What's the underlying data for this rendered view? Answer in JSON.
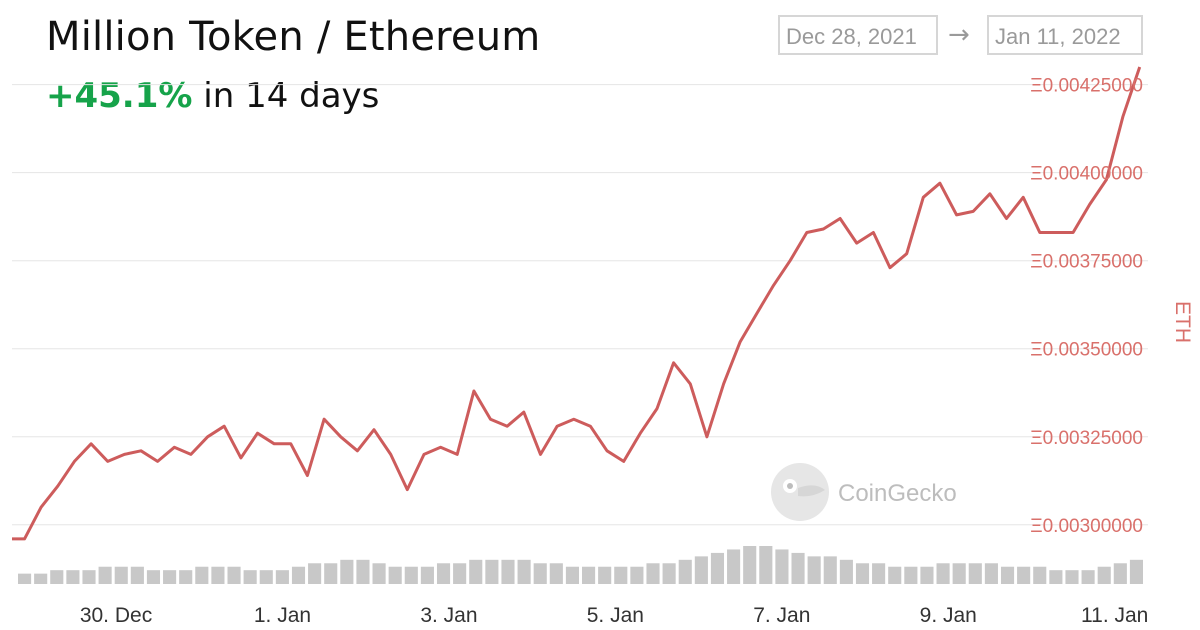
{
  "header": {
    "title": "Million Token / Ethereum",
    "change": "+45.1%",
    "change_suffix": " in 14 days",
    "change_color": "#16a34a"
  },
  "range": {
    "start": "Dec 28, 2021",
    "arrow": "→",
    "end": "Jan 11, 2022"
  },
  "watermark": {
    "text": "CoinGecko",
    "icon": "gecko-logo-icon"
  },
  "colors": {
    "line": "#cd5c5c",
    "grid": "#e5e5e5",
    "volume": "#c8c8c8",
    "axis_text": "#d9706b"
  },
  "chart_data": {
    "type": "line",
    "title": "Million Token / Ethereum",
    "xlabel": "",
    "ylabel": "ETH",
    "x_range": [
      "2021-12-28",
      "2022-01-11"
    ],
    "ylim": [
      0.0029,
      0.00432
    ],
    "y_ticks": [
      0.003,
      0.00325,
      0.0035,
      0.00375,
      0.004,
      0.00425
    ],
    "y_tick_labels": [
      "Ξ0.00300000",
      "Ξ0.00325000",
      "Ξ0.00350000",
      "Ξ0.00375000",
      "Ξ0.00400000",
      "Ξ0.00425000"
    ],
    "x_tick_labels": [
      "30. Dec",
      "1. Jan",
      "3. Jan",
      "5. Jan",
      "7. Jan",
      "9. Jan",
      "11. Jan"
    ],
    "x_tick_days": [
      2,
      4,
      6,
      8,
      10,
      12,
      14
    ],
    "grid": true,
    "legend": "none",
    "series": [
      {
        "x": [
          0.9,
          1.1,
          1.3,
          1.5,
          1.7,
          1.9,
          2.1,
          2.3,
          2.5,
          2.7,
          2.9,
          3.1,
          3.3,
          3.5,
          3.7,
          3.9,
          4.1,
          4.3,
          4.5,
          4.7,
          4.9,
          5.1,
          5.3,
          5.5,
          5.7,
          5.9,
          6.1,
          6.3,
          6.5,
          6.7,
          6.9,
          7.1,
          7.3,
          7.5,
          7.7,
          7.9,
          8.1,
          8.3,
          8.5,
          8.7,
          8.9,
          9.1,
          9.3,
          9.5,
          9.7,
          9.9,
          10.1,
          10.3,
          10.5,
          10.7,
          10.9,
          11.1,
          11.3,
          11.5,
          11.7,
          11.9,
          12.1,
          12.3,
          12.5,
          12.7,
          12.9,
          13.1,
          13.3,
          13.5,
          13.7,
          13.9,
          14.1,
          14.3
        ],
        "values": [
          0.00296,
          0.00305,
          0.00311,
          0.00318,
          0.00323,
          0.00318,
          0.0032,
          0.00321,
          0.00318,
          0.00322,
          0.0032,
          0.00325,
          0.00328,
          0.00319,
          0.00326,
          0.00323,
          0.00323,
          0.00314,
          0.0033,
          0.00325,
          0.00321,
          0.00327,
          0.0032,
          0.0031,
          0.0032,
          0.00322,
          0.0032,
          0.00338,
          0.0033,
          0.00328,
          0.00332,
          0.0032,
          0.00328,
          0.0033,
          0.00328,
          0.00321,
          0.00318,
          0.00326,
          0.00333,
          0.00346,
          0.0034,
          0.00325,
          0.0034,
          0.00352,
          0.0036,
          0.00368,
          0.00375,
          0.00383,
          0.00384,
          0.00387,
          0.0038,
          0.00383,
          0.00373,
          0.00377,
          0.00393,
          0.00397,
          0.00388,
          0.00389,
          0.00394,
          0.00387,
          0.00393,
          0.00383,
          0.00383,
          0.00383,
          0.00391,
          0.00398,
          0.00416,
          0.0043
        ],
        "start_value": 0.00296
      }
    ],
    "volume": {
      "values": [
        3,
        3,
        4,
        4,
        4,
        5,
        5,
        5,
        4,
        4,
        4,
        5,
        5,
        5,
        4,
        4,
        4,
        5,
        6,
        6,
        7,
        7,
        6,
        5,
        5,
        5,
        6,
        6,
        7,
        7,
        7,
        7,
        6,
        6,
        5,
        5,
        5,
        5,
        5,
        6,
        6,
        7,
        8,
        9,
        10,
        11,
        11,
        10,
        9,
        8,
        8,
        7,
        6,
        6,
        5,
        5,
        5,
        6,
        6,
        6,
        6,
        5,
        5,
        5,
        4,
        4,
        4,
        5,
        6,
        7
      ]
    }
  }
}
